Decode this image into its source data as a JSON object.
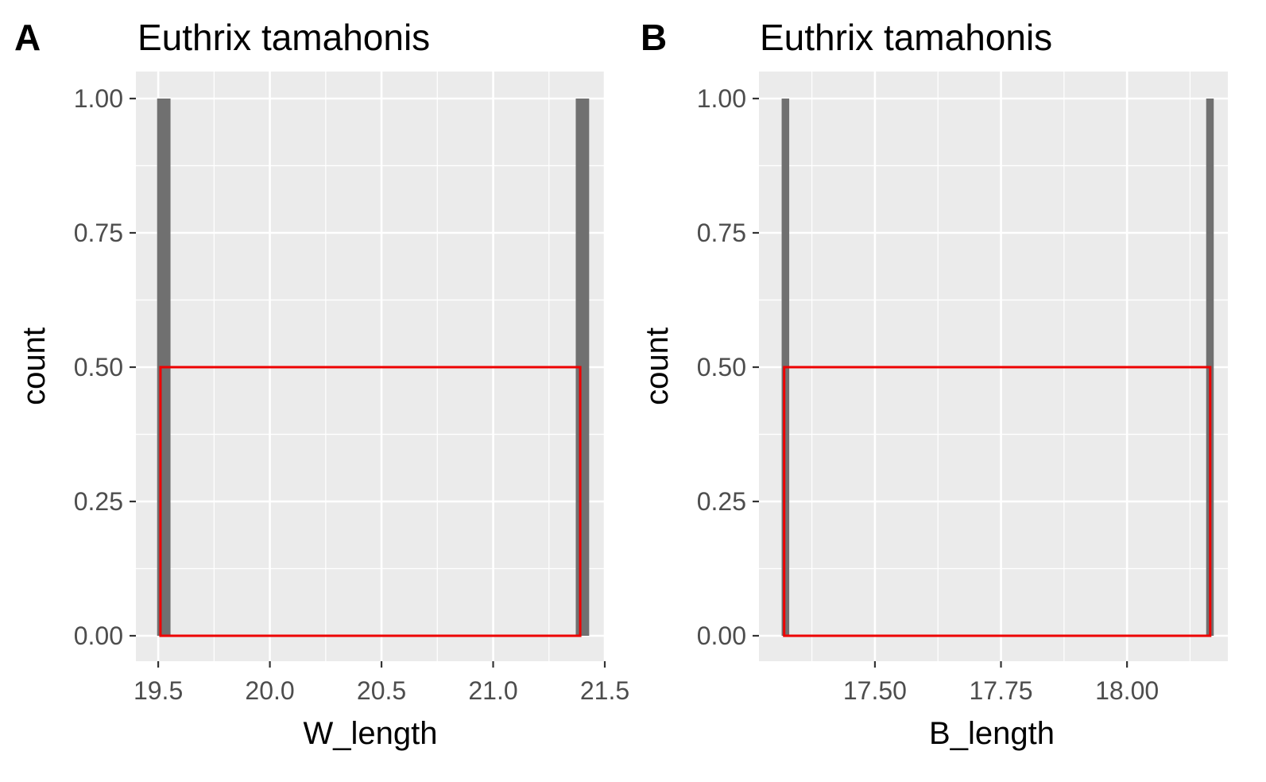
{
  "chart_data": [
    {
      "type": "bar",
      "panel_label": "A",
      "title": "Euthrix tamahonis",
      "xlabel": "W_length",
      "ylabel": "count",
      "xlim": [
        19.4,
        21.5
      ],
      "ylim": [
        0,
        1.0
      ],
      "x_ticks": [
        19.5,
        20.0,
        20.5,
        21.0,
        21.5
      ],
      "x_tick_labels": [
        "19.5",
        "20.0",
        "20.5",
        "21.0",
        "21.5"
      ],
      "y_ticks": [
        0,
        0.25,
        0.5,
        0.75,
        1.0
      ],
      "y_tick_labels": [
        "0.00",
        "0.25",
        "0.50",
        "0.75",
        "1.00"
      ],
      "bars": [
        {
          "x0": 19.495,
          "x1": 19.555,
          "count": 1
        },
        {
          "x0": 21.37,
          "x1": 21.43,
          "count": 1
        }
      ],
      "rectangle": {
        "x0": 19.51,
        "x1": 21.39,
        "y0": 0,
        "y1": 0.5
      },
      "grid": true,
      "colors": {
        "panel_background": "#ebebeb",
        "grid": "#ffffff",
        "bar": "#707070",
        "rectangle": "#ee0000"
      }
    },
    {
      "type": "bar",
      "panel_label": "B",
      "title": "Euthrix tamahonis",
      "xlabel": "B_length",
      "ylabel": "count",
      "xlim": [
        17.27,
        18.2
      ],
      "ylim": [
        0,
        1.0
      ],
      "x_ticks": [
        17.5,
        17.75,
        18.0
      ],
      "x_tick_labels": [
        "17.50",
        "17.75",
        "18.00"
      ],
      "y_ticks": [
        0,
        0.25,
        0.5,
        0.75,
        1.0
      ],
      "y_tick_labels": [
        "0.00",
        "0.25",
        "0.50",
        "0.75",
        "1.00"
      ],
      "bars": [
        {
          "x0": 17.315,
          "x1": 17.33,
          "count": 1
        },
        {
          "x0": 18.157,
          "x1": 18.172,
          "count": 1
        }
      ],
      "rectangle": {
        "x0": 17.32,
        "x1": 18.165,
        "y0": 0,
        "y1": 0.5
      },
      "grid": true,
      "colors": {
        "panel_background": "#ebebeb",
        "grid": "#ffffff",
        "bar": "#707070",
        "rectangle": "#ee0000"
      }
    }
  ]
}
